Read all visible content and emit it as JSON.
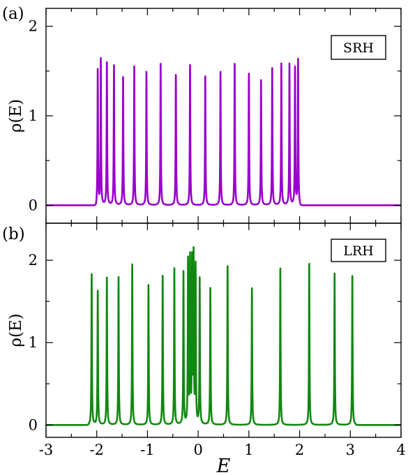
{
  "chart_data": [
    {
      "panel_label": "(a)",
      "type": "line",
      "legend": "SRH",
      "legend_position": "top-right",
      "color": "#9900cc",
      "xlabel": "",
      "ylabel": "ρ(E)",
      "xlim": [
        -3,
        4
      ],
      "ylim": [
        -0.2,
        2.2
      ],
      "yticks": [
        0,
        1,
        2
      ],
      "ytick_labels": [
        "0",
        "1",
        "2"
      ],
      "baseline_at_edges": 0.0,
      "band_edges": [
        -2.0,
        2.0
      ],
      "peak_width": 0.006,
      "peaks": [
        {
          "x": -1.98,
          "y": 1.51
        },
        {
          "x": -1.92,
          "y": 1.63
        },
        {
          "x": -1.8,
          "y": 1.6
        },
        {
          "x": -1.66,
          "y": 1.57
        },
        {
          "x": -1.48,
          "y": 1.43
        },
        {
          "x": -1.26,
          "y": 1.56
        },
        {
          "x": -1.02,
          "y": 1.49
        },
        {
          "x": -0.74,
          "y": 1.58
        },
        {
          "x": -0.44,
          "y": 1.46
        },
        {
          "x": -0.16,
          "y": 1.57
        },
        {
          "x": 0.14,
          "y": 1.45
        },
        {
          "x": 0.44,
          "y": 1.5
        },
        {
          "x": 0.72,
          "y": 1.59
        },
        {
          "x": 1.0,
          "y": 1.48
        },
        {
          "x": 1.24,
          "y": 1.4
        },
        {
          "x": 1.46,
          "y": 1.53
        },
        {
          "x": 1.64,
          "y": 1.58
        },
        {
          "x": 1.8,
          "y": 1.58
        },
        {
          "x": 1.91,
          "y": 1.54
        },
        {
          "x": 1.97,
          "y": 1.62
        }
      ]
    },
    {
      "panel_label": "(b)",
      "type": "line",
      "legend": "LRH",
      "legend_position": "top-right",
      "color": "#118811",
      "xlabel": "E",
      "ylabel": "ρ(E)",
      "xlim": [
        -3,
        4
      ],
      "ylim": [
        -0.15,
        2.45
      ],
      "xticks": [
        -3,
        -2,
        -1,
        0,
        1,
        2,
        3,
        4
      ],
      "xtick_labels": [
        "-3",
        "-2",
        "-1",
        "0",
        "1",
        "2",
        "3",
        "4"
      ],
      "yticks": [
        0,
        1,
        2
      ],
      "ytick_labels": [
        "0",
        "1",
        "2"
      ],
      "band_edges": [
        -2.15,
        3.1
      ],
      "peak_width": 0.006,
      "peaks": [
        {
          "x": -2.1,
          "y": 1.84
        },
        {
          "x": -1.98,
          "y": 1.63
        },
        {
          "x": -1.8,
          "y": 1.8
        },
        {
          "x": -1.57,
          "y": 1.8
        },
        {
          "x": -1.3,
          "y": 1.95
        },
        {
          "x": -0.98,
          "y": 1.71
        },
        {
          "x": -0.7,
          "y": 1.82
        },
        {
          "x": -0.47,
          "y": 1.91
        },
        {
          "x": -0.29,
          "y": 1.85
        },
        {
          "x": -0.2,
          "y": 1.97
        },
        {
          "x": -0.16,
          "y": 1.99
        },
        {
          "x": -0.12,
          "y": 1.96
        },
        {
          "x": -0.09,
          "y": 2.02
        },
        {
          "x": -0.05,
          "y": 1.92
        },
        {
          "x": 0.03,
          "y": 1.77
        },
        {
          "x": 0.24,
          "y": 1.66
        },
        {
          "x": 0.58,
          "y": 1.94
        },
        {
          "x": 1.06,
          "y": 1.66
        },
        {
          "x": 1.62,
          "y": 1.9
        },
        {
          "x": 2.19,
          "y": 1.97
        },
        {
          "x": 2.69,
          "y": 1.84
        },
        {
          "x": 3.04,
          "y": 1.81
        }
      ]
    }
  ]
}
